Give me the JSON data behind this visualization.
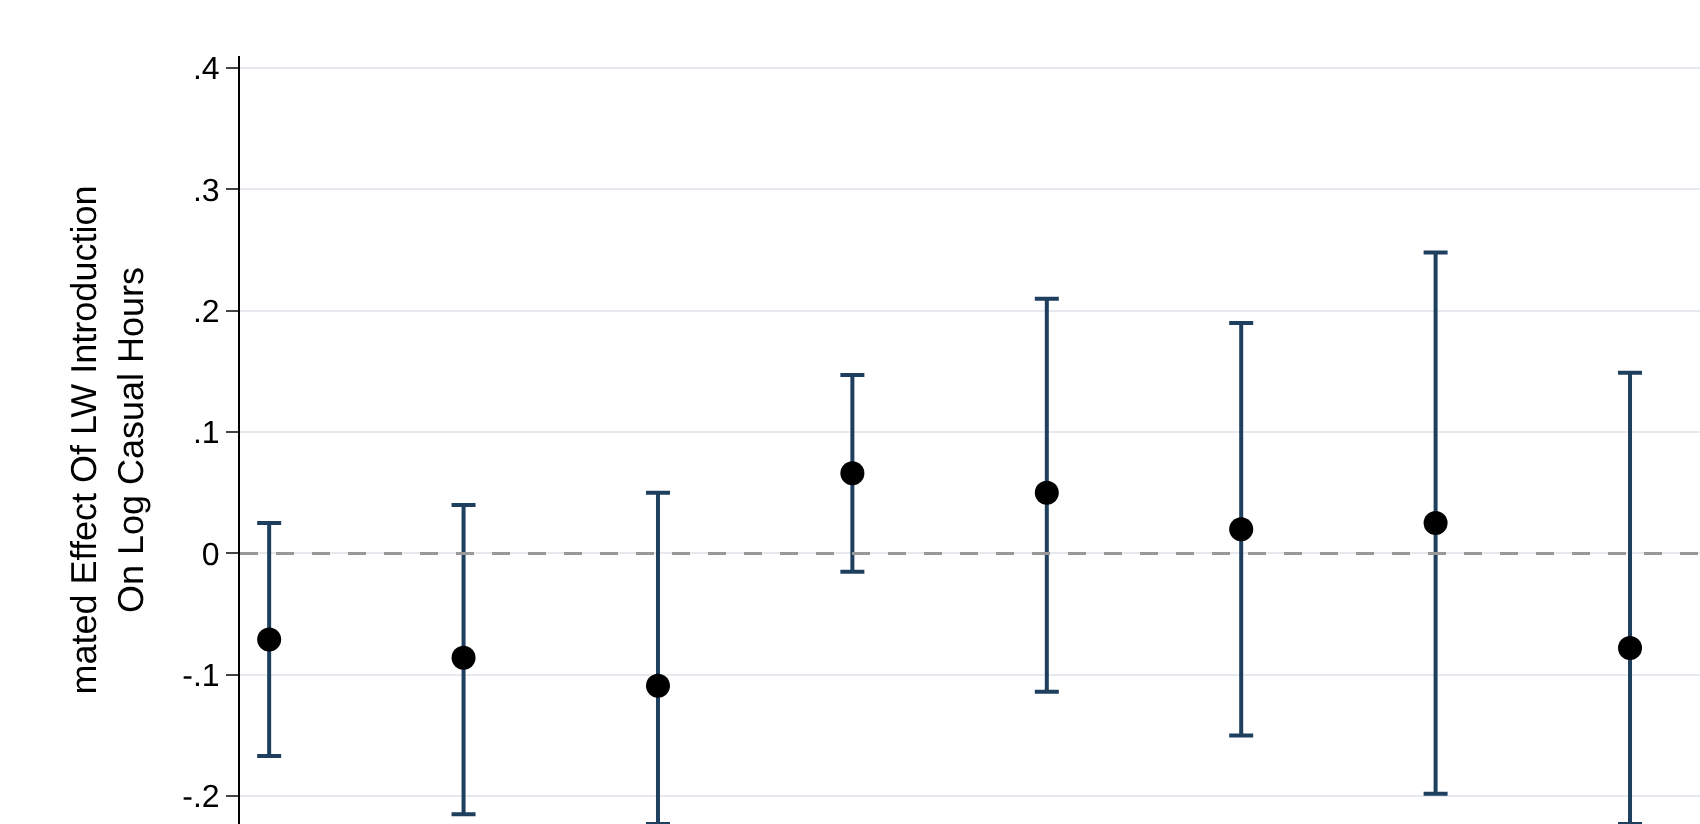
{
  "chart_data": {
    "type": "scatter",
    "ylabel": "mated Effect Of LW Introduction\nOn Log Casual Hours",
    "categories": [
      null,
      null,
      null,
      null,
      null,
      null,
      null,
      null
    ],
    "series": [
      {
        "color": "#000000",
        "values": [
          -0.071,
          -0.086,
          -0.109,
          0.066,
          0.05,
          0.02,
          0.025,
          -0.078
        ],
        "errors": [
          [
            -0.167,
            0.025
          ],
          [
            -0.215,
            0.04
          ],
          [
            -0.223,
            0.05
          ],
          [
            -0.015,
            0.147
          ],
          [
            -0.114,
            0.21
          ],
          [
            -0.15,
            0.19
          ],
          [
            -0.198,
            0.248
          ],
          [
            -0.223,
            0.149
          ]
        ]
      }
    ],
    "ylim": [
      -0.223,
      0.41
    ],
    "yticks": [
      {
        "value": 0.4,
        "label": ".4"
      },
      {
        "value": 0.3,
        "label": ".3"
      },
      {
        "value": 0.2,
        "label": ".2"
      },
      {
        "value": 0.1,
        "label": ".1"
      },
      0,
      {
        "value": -0.1,
        "label": "-.1"
      },
      {
        "value": -0.2,
        "label": "-.2"
      }
    ],
    "ref_lines": [
      {
        "axis": "y",
        "value": 0,
        "color": "#999999",
        "line_style": "dashed"
      }
    ],
    "grid": "y",
    "marker": "circle",
    "tick_labels": "y"
  }
}
